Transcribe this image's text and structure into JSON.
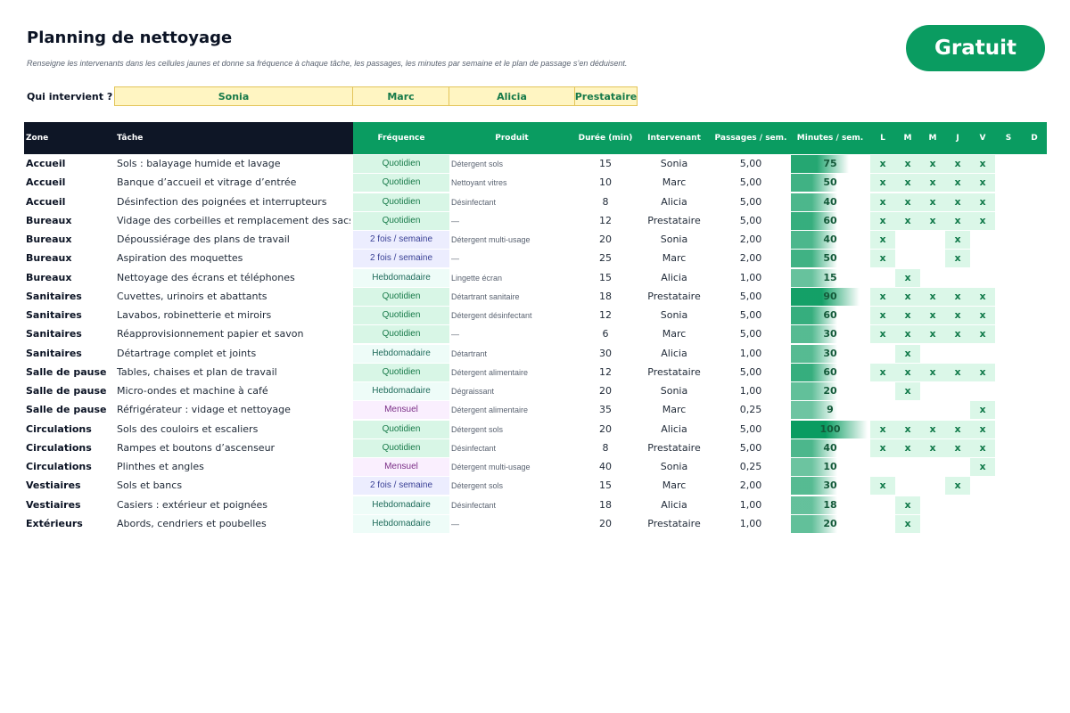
{
  "title": "Planning de nettoyage",
  "subtitle": "Renseigne les intervenants dans les cellules jaunes et donne sa fréquence à chaque tâche, les passages, les minutes par semaine et le plan de passage s’en déduisent.",
  "badge": "Gratuit",
  "qui": {
    "label": "Qui intervient ?",
    "names": [
      "Sonia",
      "Marc",
      "Alicia",
      "Prestataire"
    ]
  },
  "colors": {
    "accent_green": "#0a9c61",
    "header_dark": "#0e1626",
    "input_yellow": "#fff5c2"
  },
  "headers": {
    "zone": "Zone",
    "tache": "Tâche",
    "frequence": "Fréquence",
    "produit": "Produit",
    "duree": "Durée (min)",
    "intervenant": "Intervenant",
    "passages": "Passages / sem.",
    "minutes": "Minutes / sem.",
    "days": [
      "L",
      "M",
      "M",
      "J",
      "V",
      "S",
      "D"
    ]
  },
  "max_minutes": 100,
  "rows": [
    {
      "zone": "Accueil",
      "tache": "Sols : balayage humide et lavage",
      "freq": "Quotidien",
      "freq_kind": "quotidien",
      "produit": "Détergent sols",
      "duree": "15",
      "intervenant": "Sonia",
      "passages": "5,00",
      "minutes": 75,
      "days": [
        true,
        true,
        true,
        true,
        true,
        false,
        false
      ]
    },
    {
      "zone": "Accueil",
      "tache": "Banque d’accueil et vitrage d’entrée",
      "freq": "Quotidien",
      "freq_kind": "quotidien",
      "produit": "Nettoyant vitres",
      "duree": "10",
      "intervenant": "Marc",
      "passages": "5,00",
      "minutes": 50,
      "days": [
        true,
        true,
        true,
        true,
        true,
        false,
        false
      ]
    },
    {
      "zone": "Accueil",
      "tache": "Désinfection des poignées et interrupteurs",
      "freq": "Quotidien",
      "freq_kind": "quotidien",
      "produit": "Désinfectant",
      "duree": "8",
      "intervenant": "Alicia",
      "passages": "5,00",
      "minutes": 40,
      "days": [
        true,
        true,
        true,
        true,
        true,
        false,
        false
      ]
    },
    {
      "zone": "Bureaux",
      "tache": "Vidage des corbeilles et remplacement des sacs",
      "freq": "Quotidien",
      "freq_kind": "quotidien",
      "produit": "—",
      "duree": "12",
      "intervenant": "Prestataire",
      "passages": "5,00",
      "minutes": 60,
      "days": [
        true,
        true,
        true,
        true,
        true,
        false,
        false
      ]
    },
    {
      "zone": "Bureaux",
      "tache": "Dépoussiérage des plans de travail",
      "freq": "2 fois / semaine",
      "freq_kind": "deux",
      "produit": "Détergent multi-usage",
      "duree": "20",
      "intervenant": "Sonia",
      "passages": "2,00",
      "minutes": 40,
      "days": [
        true,
        false,
        false,
        true,
        false,
        false,
        false
      ]
    },
    {
      "zone": "Bureaux",
      "tache": "Aspiration des moquettes",
      "freq": "2 fois / semaine",
      "freq_kind": "deux",
      "produit": "—",
      "duree": "25",
      "intervenant": "Marc",
      "passages": "2,00",
      "minutes": 50,
      "days": [
        true,
        false,
        false,
        true,
        false,
        false,
        false
      ]
    },
    {
      "zone": "Bureaux",
      "tache": "Nettoyage des écrans et téléphones",
      "freq": "Hebdomadaire",
      "freq_kind": "hebdo",
      "produit": "Lingette écran",
      "duree": "15",
      "intervenant": "Alicia",
      "passages": "1,00",
      "minutes": 15,
      "days": [
        false,
        true,
        false,
        false,
        false,
        false,
        false
      ]
    },
    {
      "zone": "Sanitaires",
      "tache": "Cuvettes, urinoirs et abattants",
      "freq": "Quotidien",
      "freq_kind": "quotidien",
      "produit": "Détartrant sanitaire",
      "duree": "18",
      "intervenant": "Prestataire",
      "passages": "5,00",
      "minutes": 90,
      "days": [
        true,
        true,
        true,
        true,
        true,
        false,
        false
      ]
    },
    {
      "zone": "Sanitaires",
      "tache": "Lavabos, robinetterie et miroirs",
      "freq": "Quotidien",
      "freq_kind": "quotidien",
      "produit": "Détergent désinfectant",
      "duree": "12",
      "intervenant": "Sonia",
      "passages": "5,00",
      "minutes": 60,
      "days": [
        true,
        true,
        true,
        true,
        true,
        false,
        false
      ]
    },
    {
      "zone": "Sanitaires",
      "tache": "Réapprovisionnement papier et savon",
      "freq": "Quotidien",
      "freq_kind": "quotidien",
      "produit": "—",
      "duree": "6",
      "intervenant": "Marc",
      "passages": "5,00",
      "minutes": 30,
      "days": [
        true,
        true,
        true,
        true,
        true,
        false,
        false
      ]
    },
    {
      "zone": "Sanitaires",
      "tache": "Détartrage complet et joints",
      "freq": "Hebdomadaire",
      "freq_kind": "hebdo",
      "produit": "Détartrant",
      "duree": "30",
      "intervenant": "Alicia",
      "passages": "1,00",
      "minutes": 30,
      "days": [
        false,
        true,
        false,
        false,
        false,
        false,
        false
      ]
    },
    {
      "zone": "Salle de pause",
      "tache": "Tables, chaises et plan de travail",
      "freq": "Quotidien",
      "freq_kind": "quotidien",
      "produit": "Détergent alimentaire",
      "duree": "12",
      "intervenant": "Prestataire",
      "passages": "5,00",
      "minutes": 60,
      "days": [
        true,
        true,
        true,
        true,
        true,
        false,
        false
      ]
    },
    {
      "zone": "Salle de pause",
      "tache": "Micro-ondes et machine à café",
      "freq": "Hebdomadaire",
      "freq_kind": "hebdo",
      "produit": "Dégraissant",
      "duree": "20",
      "intervenant": "Sonia",
      "passages": "1,00",
      "minutes": 20,
      "days": [
        false,
        true,
        false,
        false,
        false,
        false,
        false
      ]
    },
    {
      "zone": "Salle de pause",
      "tache": "Réfrigérateur : vidage et nettoyage",
      "freq": "Mensuel",
      "freq_kind": "mensuel",
      "produit": "Détergent alimentaire",
      "duree": "35",
      "intervenant": "Marc",
      "passages": "0,25",
      "minutes": 9,
      "days": [
        false,
        false,
        false,
        false,
        true,
        false,
        false
      ]
    },
    {
      "zone": "Circulations",
      "tache": "Sols des couloirs et escaliers",
      "freq": "Quotidien",
      "freq_kind": "quotidien",
      "produit": "Détergent sols",
      "duree": "20",
      "intervenant": "Alicia",
      "passages": "5,00",
      "minutes": 100,
      "days": [
        true,
        true,
        true,
        true,
        true,
        false,
        false
      ]
    },
    {
      "zone": "Circulations",
      "tache": "Rampes et boutons d’ascenseur",
      "freq": "Quotidien",
      "freq_kind": "quotidien",
      "produit": "Désinfectant",
      "duree": "8",
      "intervenant": "Prestataire",
      "passages": "5,00",
      "minutes": 40,
      "days": [
        true,
        true,
        true,
        true,
        true,
        false,
        false
      ]
    },
    {
      "zone": "Circulations",
      "tache": "Plinthes et angles",
      "freq": "Mensuel",
      "freq_kind": "mensuel",
      "produit": "Détergent multi-usage",
      "duree": "40",
      "intervenant": "Sonia",
      "passages": "0,25",
      "minutes": 10,
      "days": [
        false,
        false,
        false,
        false,
        true,
        false,
        false
      ]
    },
    {
      "zone": "Vestiaires",
      "tache": "Sols et bancs",
      "freq": "2 fois / semaine",
      "freq_kind": "deux",
      "produit": "Détergent sols",
      "duree": "15",
      "intervenant": "Marc",
      "passages": "2,00",
      "minutes": 30,
      "days": [
        true,
        false,
        false,
        true,
        false,
        false,
        false
      ]
    },
    {
      "zone": "Vestiaires",
      "tache": "Casiers : extérieur et poignées",
      "freq": "Hebdomadaire",
      "freq_kind": "hebdo",
      "produit": "Désinfectant",
      "duree": "18",
      "intervenant": "Alicia",
      "passages": "1,00",
      "minutes": 18,
      "days": [
        false,
        true,
        false,
        false,
        false,
        false,
        false
      ]
    },
    {
      "zone": "Extérieurs",
      "tache": "Abords, cendriers et poubelles",
      "freq": "Hebdomadaire",
      "freq_kind": "hebdo",
      "produit": "—",
      "duree": "20",
      "intervenant": "Prestataire",
      "passages": "1,00",
      "minutes": 20,
      "days": [
        false,
        true,
        false,
        false,
        false,
        false,
        false
      ]
    }
  ]
}
